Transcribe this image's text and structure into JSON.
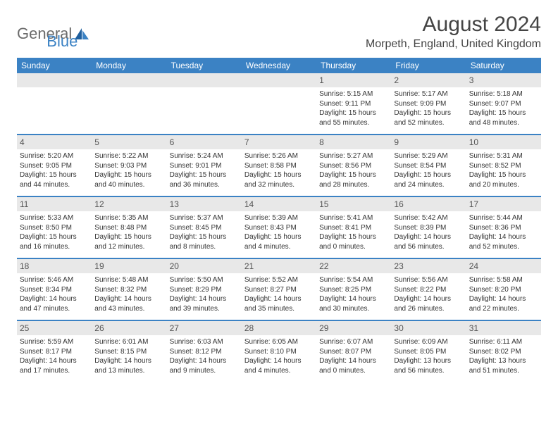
{
  "logo": {
    "part1": "General",
    "part2": "Blue"
  },
  "title": "August 2024",
  "location": "Morpeth, England, United Kingdom",
  "header_bg": "#3b82c4",
  "daynum_bg": "#e8e8e8",
  "dow": [
    "Sunday",
    "Monday",
    "Tuesday",
    "Wednesday",
    "Thursday",
    "Friday",
    "Saturday"
  ],
  "weeks": [
    [
      null,
      null,
      null,
      null,
      {
        "n": "1",
        "sr": "5:15 AM",
        "ss": "9:11 PM",
        "dl": "15 hours and 55 minutes."
      },
      {
        "n": "2",
        "sr": "5:17 AM",
        "ss": "9:09 PM",
        "dl": "15 hours and 52 minutes."
      },
      {
        "n": "3",
        "sr": "5:18 AM",
        "ss": "9:07 PM",
        "dl": "15 hours and 48 minutes."
      }
    ],
    [
      {
        "n": "4",
        "sr": "5:20 AM",
        "ss": "9:05 PM",
        "dl": "15 hours and 44 minutes."
      },
      {
        "n": "5",
        "sr": "5:22 AM",
        "ss": "9:03 PM",
        "dl": "15 hours and 40 minutes."
      },
      {
        "n": "6",
        "sr": "5:24 AM",
        "ss": "9:01 PM",
        "dl": "15 hours and 36 minutes."
      },
      {
        "n": "7",
        "sr": "5:26 AM",
        "ss": "8:58 PM",
        "dl": "15 hours and 32 minutes."
      },
      {
        "n": "8",
        "sr": "5:27 AM",
        "ss": "8:56 PM",
        "dl": "15 hours and 28 minutes."
      },
      {
        "n": "9",
        "sr": "5:29 AM",
        "ss": "8:54 PM",
        "dl": "15 hours and 24 minutes."
      },
      {
        "n": "10",
        "sr": "5:31 AM",
        "ss": "8:52 PM",
        "dl": "15 hours and 20 minutes."
      }
    ],
    [
      {
        "n": "11",
        "sr": "5:33 AM",
        "ss": "8:50 PM",
        "dl": "15 hours and 16 minutes."
      },
      {
        "n": "12",
        "sr": "5:35 AM",
        "ss": "8:48 PM",
        "dl": "15 hours and 12 minutes."
      },
      {
        "n": "13",
        "sr": "5:37 AM",
        "ss": "8:45 PM",
        "dl": "15 hours and 8 minutes."
      },
      {
        "n": "14",
        "sr": "5:39 AM",
        "ss": "8:43 PM",
        "dl": "15 hours and 4 minutes."
      },
      {
        "n": "15",
        "sr": "5:41 AM",
        "ss": "8:41 PM",
        "dl": "15 hours and 0 minutes."
      },
      {
        "n": "16",
        "sr": "5:42 AM",
        "ss": "8:39 PM",
        "dl": "14 hours and 56 minutes."
      },
      {
        "n": "17",
        "sr": "5:44 AM",
        "ss": "8:36 PM",
        "dl": "14 hours and 52 minutes."
      }
    ],
    [
      {
        "n": "18",
        "sr": "5:46 AM",
        "ss": "8:34 PM",
        "dl": "14 hours and 47 minutes."
      },
      {
        "n": "19",
        "sr": "5:48 AM",
        "ss": "8:32 PM",
        "dl": "14 hours and 43 minutes."
      },
      {
        "n": "20",
        "sr": "5:50 AM",
        "ss": "8:29 PM",
        "dl": "14 hours and 39 minutes."
      },
      {
        "n": "21",
        "sr": "5:52 AM",
        "ss": "8:27 PM",
        "dl": "14 hours and 35 minutes."
      },
      {
        "n": "22",
        "sr": "5:54 AM",
        "ss": "8:25 PM",
        "dl": "14 hours and 30 minutes."
      },
      {
        "n": "23",
        "sr": "5:56 AM",
        "ss": "8:22 PM",
        "dl": "14 hours and 26 minutes."
      },
      {
        "n": "24",
        "sr": "5:58 AM",
        "ss": "8:20 PM",
        "dl": "14 hours and 22 minutes."
      }
    ],
    [
      {
        "n": "25",
        "sr": "5:59 AM",
        "ss": "8:17 PM",
        "dl": "14 hours and 17 minutes."
      },
      {
        "n": "26",
        "sr": "6:01 AM",
        "ss": "8:15 PM",
        "dl": "14 hours and 13 minutes."
      },
      {
        "n": "27",
        "sr": "6:03 AM",
        "ss": "8:12 PM",
        "dl": "14 hours and 9 minutes."
      },
      {
        "n": "28",
        "sr": "6:05 AM",
        "ss": "8:10 PM",
        "dl": "14 hours and 4 minutes."
      },
      {
        "n": "29",
        "sr": "6:07 AM",
        "ss": "8:07 PM",
        "dl": "14 hours and 0 minutes."
      },
      {
        "n": "30",
        "sr": "6:09 AM",
        "ss": "8:05 PM",
        "dl": "13 hours and 56 minutes."
      },
      {
        "n": "31",
        "sr": "6:11 AM",
        "ss": "8:02 PM",
        "dl": "13 hours and 51 minutes."
      }
    ]
  ],
  "labels": {
    "sunrise": "Sunrise:",
    "sunset": "Sunset:",
    "daylight": "Daylight:"
  }
}
